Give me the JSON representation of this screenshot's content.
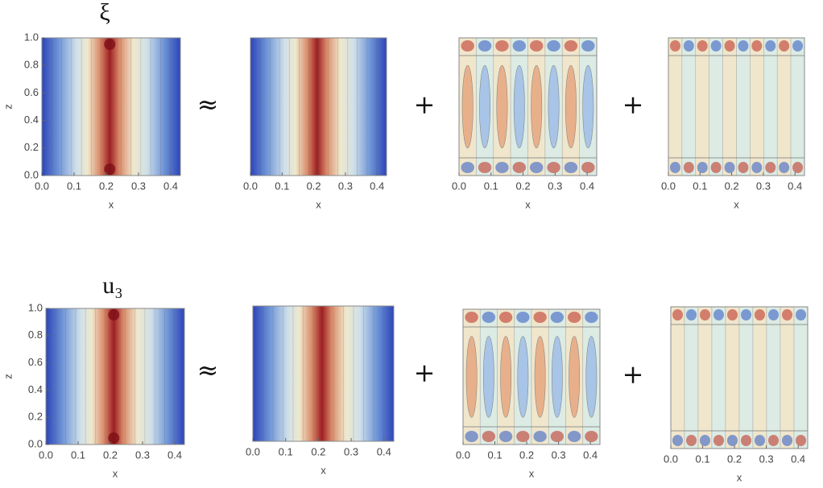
{
  "rows": [
    {
      "label": "ξ",
      "operators": [
        "≈",
        "+",
        "+"
      ]
    },
    {
      "label": "u₃",
      "operators": [
        "≈",
        "+",
        "+"
      ]
    }
  ],
  "axes": {
    "x_label": "x",
    "z_label": "z",
    "x_ticks": [
      "0.0",
      "0.1",
      "0.2",
      "0.3",
      "0.4"
    ],
    "z_ticks": [
      "0.0",
      "0.2",
      "0.4",
      "0.6",
      "0.8",
      "1.0"
    ]
  }
}
